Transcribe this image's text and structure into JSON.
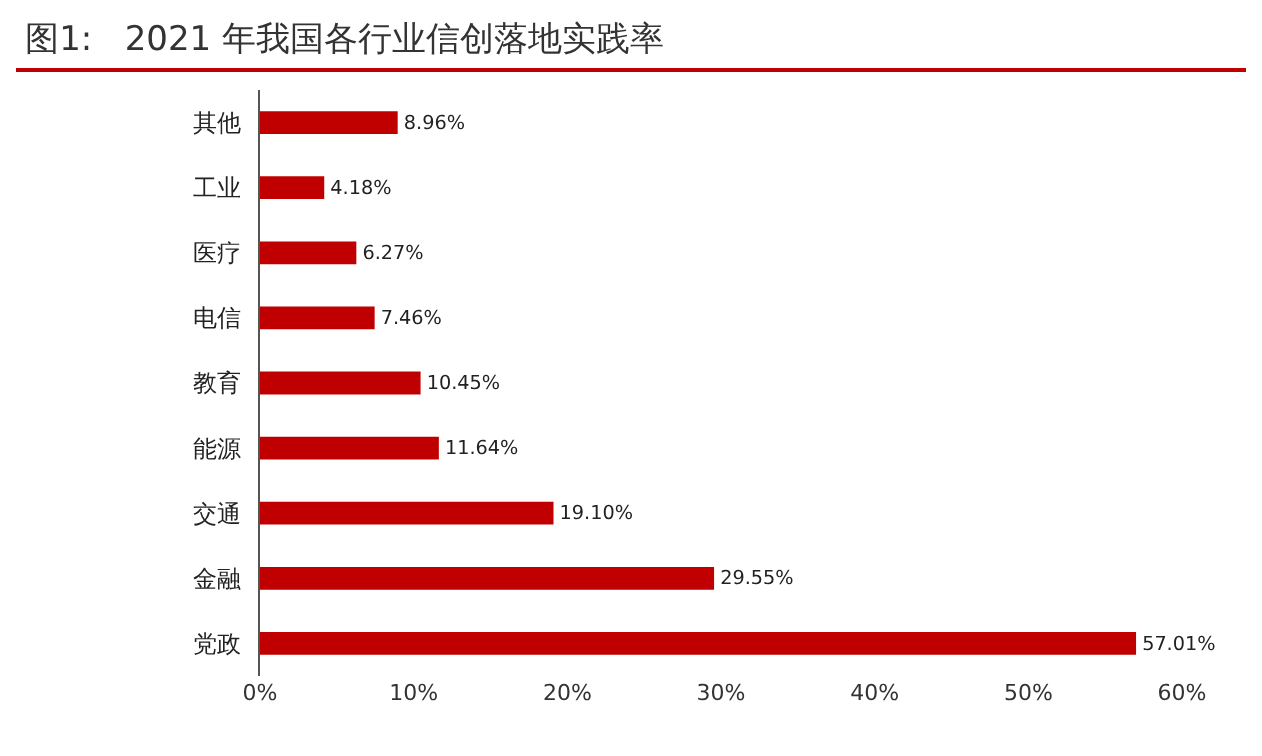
{
  "chart_data": {
    "type": "bar",
    "orientation": "horizontal",
    "title": "图1:   2021 年我国各行业信创落地实践率",
    "categories": [
      "其他",
      "工业",
      "医疗",
      "电信",
      "教育",
      "能源",
      "交通",
      "金融",
      "党政"
    ],
    "values": [
      8.96,
      4.18,
      6.27,
      7.46,
      10.45,
      11.64,
      19.1,
      29.55,
      57.01
    ],
    "value_labels": [
      "8.96%",
      "4.18%",
      "6.27%",
      "7.46%",
      "10.45%",
      "11.64%",
      "19.10%",
      "29.55%",
      "57.01%"
    ],
    "color": "#c00000",
    "xlim": [
      0,
      60
    ],
    "xticks": [
      {
        "value": 0,
        "label": "0%"
      },
      {
        "value": 10,
        "label": "10%"
      },
      {
        "value": 20,
        "label": "20%"
      },
      {
        "value": 30,
        "label": "30%"
      },
      {
        "value": 40,
        "label": "40%"
      },
      {
        "value": 50,
        "label": "50%"
      },
      {
        "value": 60,
        "label": "60%"
      }
    ],
    "grid": false,
    "legend": false
  }
}
